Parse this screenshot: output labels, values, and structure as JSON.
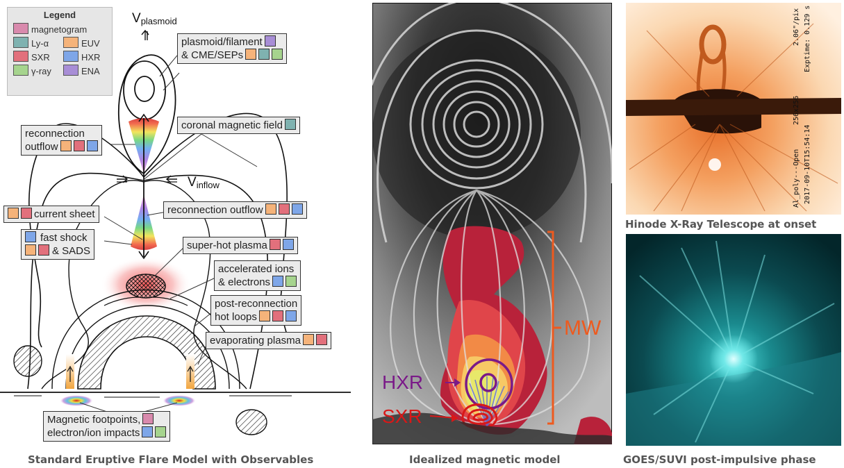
{
  "legend": {
    "title": "Legend",
    "items": [
      {
        "label": "magnetogram",
        "color": "#d98aad"
      },
      {
        "label": "Ly-α",
        "color": "#7fb2b0"
      },
      {
        "label": "EUV",
        "color": "#f5b37a"
      },
      {
        "label": "SXR",
        "color": "#e2707c"
      },
      {
        "label": "HXR",
        "color": "#7ea6e8"
      },
      {
        "label": "γ-ray",
        "color": "#a6d48e"
      },
      {
        "label": "ENA",
        "color": "#a88ed6"
      }
    ]
  },
  "left_diagram": {
    "v_plasmoid": "V",
    "v_plasmoid_sub": "plasmoid",
    "v_inflow": "V",
    "v_inflow_sub": "inflow",
    "boxes": {
      "plasmoid_line1": "plasmoid/filament",
      "plasmoid_line2": "& CME/SEPs",
      "coronal_field": "coronal magnetic field",
      "recon_outflow_top_line1": "reconnection",
      "recon_outflow_top_line2": "outflow",
      "current_sheet": "current sheet",
      "recon_outflow_mid": "reconnection outflow",
      "fast_shock_line1": "fast shock",
      "fast_shock_line2": "& SADS",
      "super_hot": "super-hot plasma",
      "accel_line1": "accelerated ions",
      "accel_line2": "& electrons",
      "post_recon_line1": "post-reconnection",
      "post_recon_line2": "hot loops",
      "evaporating": "evaporating plasma",
      "footpoints_line1": "Magnetic footpoints,",
      "footpoints_line2": "electron/ion impacts"
    },
    "caption": "Standard Eruptive Flare Model with Observables"
  },
  "middle_panel": {
    "labels": {
      "mw": "MW",
      "hxr": "HXR",
      "sxr": "SXR"
    },
    "colors": {
      "mw": "#ee5a1e",
      "hxr": "#7a1a88",
      "sxr": "#d81818"
    },
    "caption": "Idealized magnetic model"
  },
  "right_top": {
    "annotations": {
      "scale": "2.06\"/pix",
      "exptime": "Exptime: 0.129 s",
      "size": "256x256",
      "time": "2017-09-10T15:54:14",
      "filter": "Al_poly---Open"
    },
    "caption": "Hinode X-Ray Telescope at onset"
  },
  "right_bottom": {
    "caption": "GOES/SUVI post-impulsive phase"
  }
}
